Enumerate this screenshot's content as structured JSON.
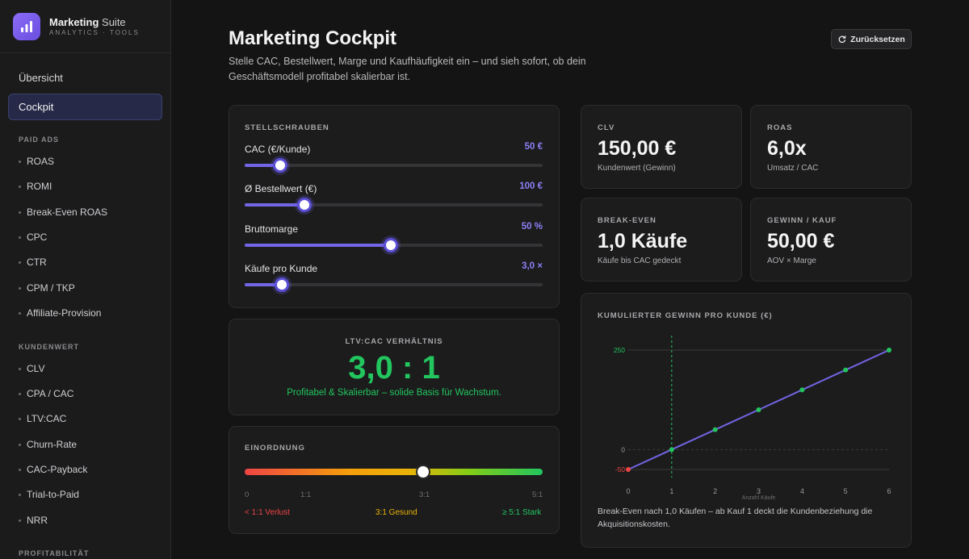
{
  "brand": {
    "name_bold": "Marketing",
    "name_light": "Suite",
    "sub": "ANALYTICS · TOOLS"
  },
  "nav": {
    "overview": "Übersicht",
    "active": "Cockpit",
    "sections": [
      {
        "title": "PAID ADS",
        "items": [
          "ROAS",
          "ROMI",
          "Break-Even ROAS",
          "CPC",
          "CTR",
          "CPM / TKP",
          "Affiliate-Provision"
        ]
      },
      {
        "title": "KUNDENWERT",
        "items": [
          "CLV",
          "CPA / CAC",
          "LTV:CAC",
          "Churn-Rate",
          "CAC-Payback",
          "Trial-to-Paid",
          "NRR"
        ]
      },
      {
        "title": "PROFITABILITÄT",
        "items": []
      }
    ]
  },
  "header": {
    "title": "Marketing Cockpit",
    "description": "Stelle CAC, Bestellwert, Marge und Kaufhäufigkeit ein – und sieh sofort, ob dein Geschäftsmodell profitabel skalierbar ist.",
    "reset_label": "Zurücksetzen"
  },
  "controls": {
    "caption": "STELLSCHRAUBEN",
    "sliders": [
      {
        "label": "CAC (€/Kunde)",
        "value": "50 €",
        "fraction": 0.12
      },
      {
        "label": "Ø Bestellwert (€)",
        "value": "100 €",
        "fraction": 0.2
      },
      {
        "label": "Bruttomarge",
        "value": "50 %",
        "fraction": 0.49
      },
      {
        "label": "Käufe pro Kunde",
        "value": "3,0 ×",
        "fraction": 0.125
      }
    ]
  },
  "ratio": {
    "caption": "LTV:CAC VERHÄLTNIS",
    "value": "3,0 : 1",
    "note": "Profitabel & Skalierbar – solide Basis für Wachstum."
  },
  "scale": {
    "caption": "EINORDNUNG",
    "position": 0.6,
    "ticks": [
      "0",
      "1:1",
      "3:1",
      "5:1"
    ],
    "zones": [
      {
        "label": "< 1:1 Verlust",
        "color": "#ef4444"
      },
      {
        "label": "3:1 Gesund",
        "color": "#eab308"
      },
      {
        "label": "≥ 5:1 Stark",
        "color": "#22c55e"
      }
    ]
  },
  "kpis": [
    {
      "caption": "CLV",
      "value": "150,00 €",
      "sub": "Kundenwert (Gewinn)"
    },
    {
      "caption": "ROAS",
      "value": "6,0x",
      "sub": "Umsatz / CAC"
    },
    {
      "caption": "BREAK-EVEN",
      "value": "1,0 Käufe",
      "sub": "Käufe bis CAC gedeckt"
    },
    {
      "caption": "GEWINN / KAUF",
      "value": "50,00 €",
      "sub": "AOV × Marge"
    }
  ],
  "chart_data": {
    "type": "line",
    "title": "KUMULIERTER GEWINN PRO KUNDE (€)",
    "xlabel": "Anzahl Käufe",
    "ylabel": "",
    "x": [
      0,
      1,
      2,
      3,
      4,
      5,
      6
    ],
    "series": [
      {
        "values": [
          -50,
          0,
          50,
          100,
          150,
          200,
          250
        ]
      }
    ],
    "x_ticks": [
      "0",
      "1",
      "2",
      "3",
      "4",
      "5",
      "6"
    ],
    "y_ticks": [
      "250",
      "0",
      "-50"
    ],
    "xlim": [
      0,
      6
    ],
    "ylim": [
      -50,
      250
    ],
    "break_even_x": 1,
    "colors": {
      "line": "#7264e4",
      "point": "#22c55e",
      "negative_point": "#ef4444",
      "break_even": "#22c55e"
    },
    "footnote": "Break-Even nach 1,0 Käufen – ab Kauf 1 deckt die Kundenbeziehung die Akquisitionskosten."
  }
}
